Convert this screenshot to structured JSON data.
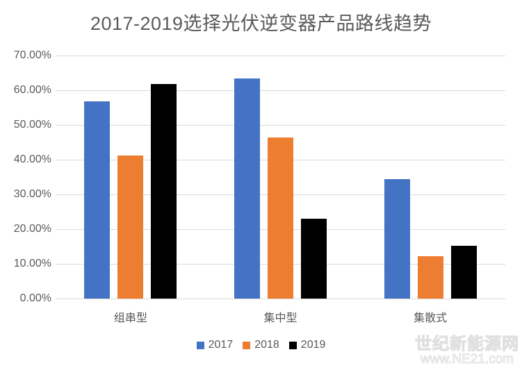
{
  "chart_data": {
    "type": "bar",
    "title": "2017-2019选择光伏逆变器产品路线趋势",
    "categories": [
      "组串型",
      "集中型",
      "集散式"
    ],
    "series": [
      {
        "name": "2017",
        "color": "#4472C4",
        "values": [
          56.8,
          63.4,
          34.4
        ]
      },
      {
        "name": "2018",
        "color": "#ED7D31",
        "values": [
          41.2,
          46.4,
          12.2
        ]
      },
      {
        "name": "2019",
        "color": "#000000",
        "values": [
          61.8,
          22.9,
          15.1
        ]
      }
    ],
    "ylim": [
      0,
      70
    ],
    "yticks": [
      "70.00%",
      "60.00%",
      "50.00%",
      "40.00%",
      "30.00%",
      "20.00%",
      "10.00%",
      "0.00%"
    ],
    "grid": true,
    "legend_position": "bottom",
    "xlabel": "",
    "ylabel": ""
  },
  "watermark": {
    "line1": "世纪新能源网",
    "line2": "www.NE21.com"
  },
  "colors": {
    "gridline": "#D9D9D9",
    "axis_text": "#595959",
    "title_text": "#595959",
    "background": "#FFFFFF"
  }
}
